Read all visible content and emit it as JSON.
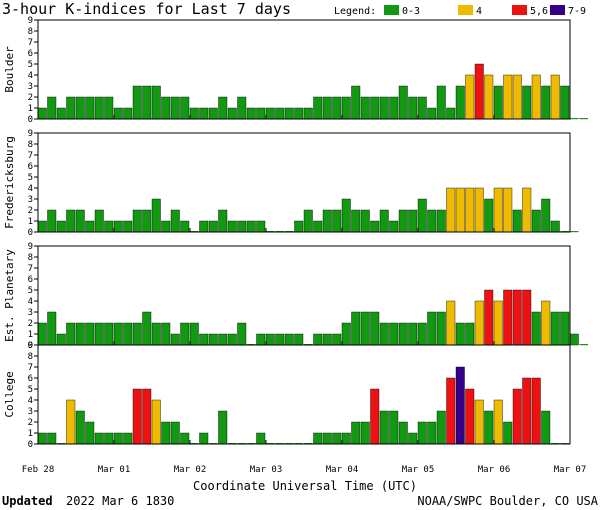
{
  "title": "3-hour K-indices for Last 7 days",
  "legend": {
    "label": "Legend:",
    "items": [
      {
        "label": "0-3",
        "color": "#119911"
      },
      {
        "label": "4",
        "color": "#eebb00"
      },
      {
        "label": "5,6",
        "color": "#ee1111"
      },
      {
        "label": "7-9",
        "color": "#330088"
      }
    ]
  },
  "footer": {
    "updated_label": "Updated",
    "updated_time": "2022 Mar  6 1830",
    "credit": "NOAA/SWPC Boulder, CO USA"
  },
  "chart_data": {
    "type": "bar",
    "x": {
      "label": "Coordinate Universal Time (UTC)",
      "tick_labels": [
        "Feb 28",
        "Mar 01",
        "Mar 02",
        "Mar 03",
        "Mar 04",
        "Mar 05",
        "Mar 06",
        "Mar 07"
      ],
      "intervals_per_day": 8
    },
    "y": {
      "range": [
        0,
        9
      ],
      "ticks": [
        "0",
        "1",
        "2",
        "3",
        "4",
        "5",
        "6",
        "7",
        "8",
        "9"
      ]
    },
    "grid": false,
    "legend_position": "top-right",
    "panels": [
      {
        "name": "Boulder",
        "values": [
          1,
          2,
          1,
          2,
          2,
          2,
          2,
          2,
          1,
          1,
          3,
          3,
          3,
          2,
          2,
          2,
          1,
          1,
          1,
          2,
          1,
          2,
          1,
          1,
          1,
          1,
          1,
          1,
          1,
          2,
          2,
          2,
          2,
          3,
          2,
          2,
          2,
          2,
          3,
          2,
          2,
          1,
          3,
          1,
          3,
          4,
          5,
          4,
          3,
          4,
          4,
          3,
          4,
          3,
          4,
          3,
          0,
          0,
          null,
          null,
          null,
          null,
          null,
          null
        ]
      },
      {
        "name": "Fredericksburg",
        "values": [
          1,
          2,
          1,
          2,
          2,
          1,
          2,
          1,
          1,
          1,
          2,
          2,
          3,
          1,
          2,
          1,
          0,
          1,
          1,
          2,
          1,
          1,
          1,
          1,
          0,
          0,
          0,
          1,
          2,
          1,
          2,
          2,
          3,
          2,
          2,
          1,
          2,
          1,
          2,
          2,
          3,
          2,
          2,
          4,
          4,
          4,
          4,
          3,
          4,
          4,
          2,
          4,
          2,
          3,
          1,
          0,
          0,
          null,
          null,
          null,
          null,
          null,
          null,
          null
        ]
      },
      {
        "name": "Est. Planetary",
        "values": [
          2,
          3,
          1,
          2,
          2,
          2,
          2,
          2,
          2,
          2,
          2,
          3,
          2,
          2,
          1,
          2,
          2,
          1,
          1,
          1,
          1,
          2,
          0,
          1,
          1,
          1,
          1,
          1,
          0,
          1,
          1,
          1,
          2,
          3,
          3,
          3,
          2,
          2,
          2,
          2,
          2,
          3,
          3,
          4,
          2,
          2,
          4,
          5,
          4,
          5,
          5,
          5,
          3,
          4,
          3,
          3,
          1,
          0,
          null,
          null,
          null,
          null,
          null,
          null
        ]
      },
      {
        "name": "College",
        "values": [
          1,
          1,
          0,
          4,
          3,
          2,
          1,
          1,
          1,
          1,
          5,
          5,
          4,
          2,
          2,
          1,
          0,
          1,
          0,
          3,
          0,
          0,
          0,
          1,
          0,
          0,
          0,
          0,
          0,
          1,
          1,
          1,
          1,
          2,
          2,
          5,
          3,
          3,
          2,
          1,
          2,
          2,
          3,
          6,
          7,
          5,
          4,
          3,
          4,
          2,
          5,
          6,
          6,
          3,
          0,
          0,
          null,
          null,
          null,
          null,
          null,
          null,
          null,
          null
        ]
      }
    ]
  }
}
